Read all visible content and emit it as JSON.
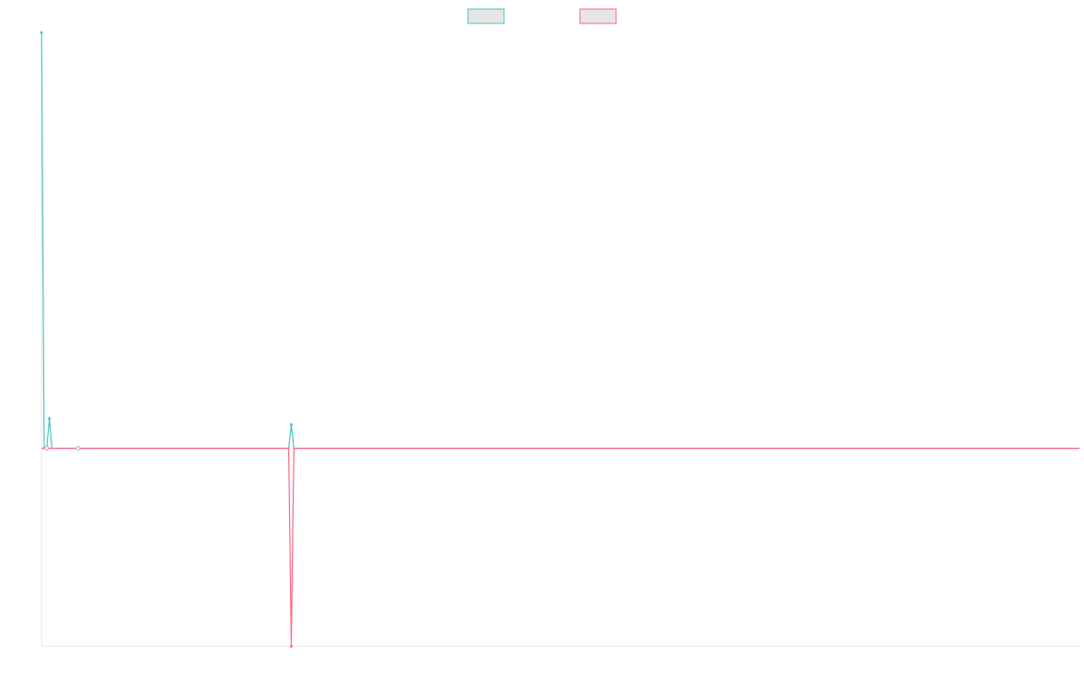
{
  "chart_data": {
    "type": "line",
    "title": "",
    "xlabel": "",
    "ylabel": "",
    "grid": false,
    "legend_position": "top-center",
    "x_count": 400,
    "ylim": [
      -50,
      105
    ],
    "series": [
      {
        "name": "",
        "color": "#4bc0c0",
        "legend_fill": "#e6e6e6",
        "baseline": 0,
        "points": [
          {
            "x": 0,
            "y": 105
          },
          {
            "x": 1,
            "y": 0
          },
          {
            "x": 2,
            "y": 0
          },
          {
            "x": 3,
            "y": 7.5
          },
          {
            "x": 4,
            "y": 0
          },
          {
            "x": 95,
            "y": 0
          },
          {
            "x": 96,
            "y": 6
          },
          {
            "x": 97,
            "y": 0
          },
          {
            "x": 399,
            "y": 0
          }
        ]
      },
      {
        "name": "",
        "color": "#ff6384",
        "legend_fill": "#e6e6e6",
        "baseline": 0,
        "points": [
          {
            "x": 0,
            "y": 0
          },
          {
            "x": 94,
            "y": 0
          },
          {
            "x": 95,
            "y": 0
          },
          {
            "x": 96,
            "y": -50
          },
          {
            "x": 97,
            "y": 0
          },
          {
            "x": 399,
            "y": 0
          }
        ]
      }
    ]
  }
}
